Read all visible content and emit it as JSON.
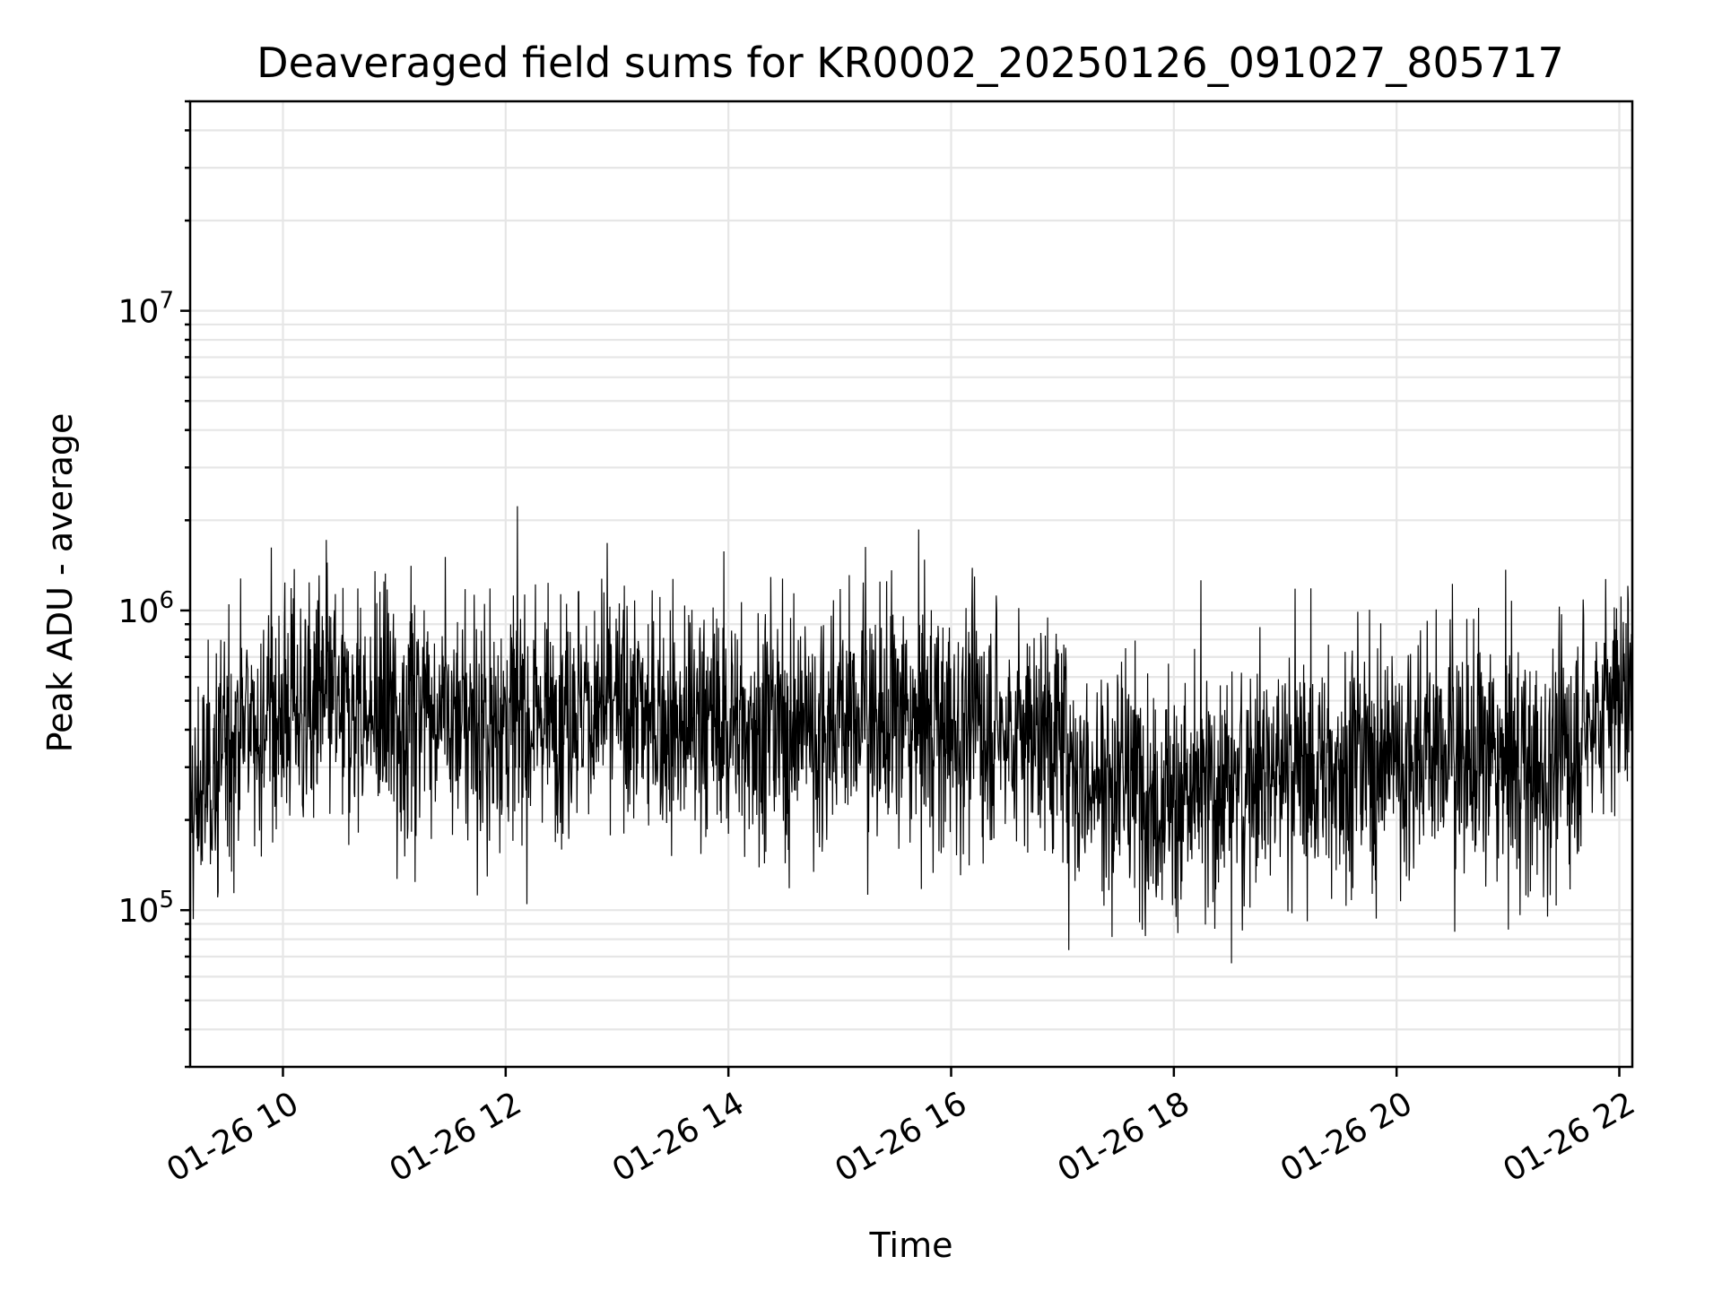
{
  "chart_data": {
    "type": "line",
    "title": "Deaveraged field sums for KR0002_20250126_091027_805717",
    "xlabel": "Time",
    "ylabel": "Peak ADU - average",
    "y_scale": "log",
    "xlim": [
      "01-26 09:10",
      "01-26 22:07"
    ],
    "ylim": [
      30000,
      50000000
    ],
    "grid": true,
    "x_ticks": [
      {
        "value": "01-26 10:00",
        "label": "01-26 10"
      },
      {
        "value": "01-26 12:00",
        "label": "01-26 12"
      },
      {
        "value": "01-26 14:00",
        "label": "01-26 14"
      },
      {
        "value": "01-26 16:00",
        "label": "01-26 16"
      },
      {
        "value": "01-26 18:00",
        "label": "01-26 18"
      },
      {
        "value": "01-26 20:00",
        "label": "01-26 20"
      },
      {
        "value": "01-26 22:00",
        "label": "01-26 22"
      }
    ],
    "y_ticks": [
      {
        "value": 100000,
        "base": "10",
        "exp": "5"
      },
      {
        "value": 1000000,
        "base": "10",
        "exp": "6"
      },
      {
        "value": 10000000,
        "base": "10",
        "exp": "7"
      }
    ],
    "series": [
      {
        "color": "#000000",
        "x": [
          "01-26 09:10",
          "01-26 09:30",
          "01-26 09:50",
          "01-26 10:10",
          "01-26 10:30",
          "01-26 10:50",
          "01-26 11:10",
          "01-26 11:30",
          "01-26 11:50",
          "01-26 12:10",
          "01-26 12:30",
          "01-26 12:50",
          "01-26 13:10",
          "01-26 13:30",
          "01-26 13:50",
          "01-26 14:10",
          "01-26 14:30",
          "01-26 14:50",
          "01-26 15:10",
          "01-26 15:30",
          "01-26 15:50",
          "01-26 16:10",
          "01-26 16:30",
          "01-26 16:50",
          "01-26 17:10",
          "01-26 17:30",
          "01-26 17:50",
          "01-26 18:10",
          "01-26 18:30",
          "01-26 18:50",
          "01-26 19:10",
          "01-26 19:30",
          "01-26 19:50",
          "01-26 20:10",
          "01-26 20:30",
          "01-26 20:50",
          "01-26 21:10",
          "01-26 21:30",
          "01-26 21:50",
          "01-26 22:07"
        ],
        "y": [
          200000,
          380000,
          450000,
          480000,
          470000,
          420000,
          480000,
          450000,
          400000,
          450000,
          480000,
          470000,
          460000,
          430000,
          420000,
          410000,
          400000,
          420000,
          440000,
          430000,
          420000,
          430000,
          400000,
          380000,
          280000,
          270000,
          250000,
          230000,
          270000,
          300000,
          290000,
          300000,
          320000,
          340000,
          330000,
          320000,
          300000,
          320000,
          480000,
          560000
        ]
      }
    ]
  }
}
